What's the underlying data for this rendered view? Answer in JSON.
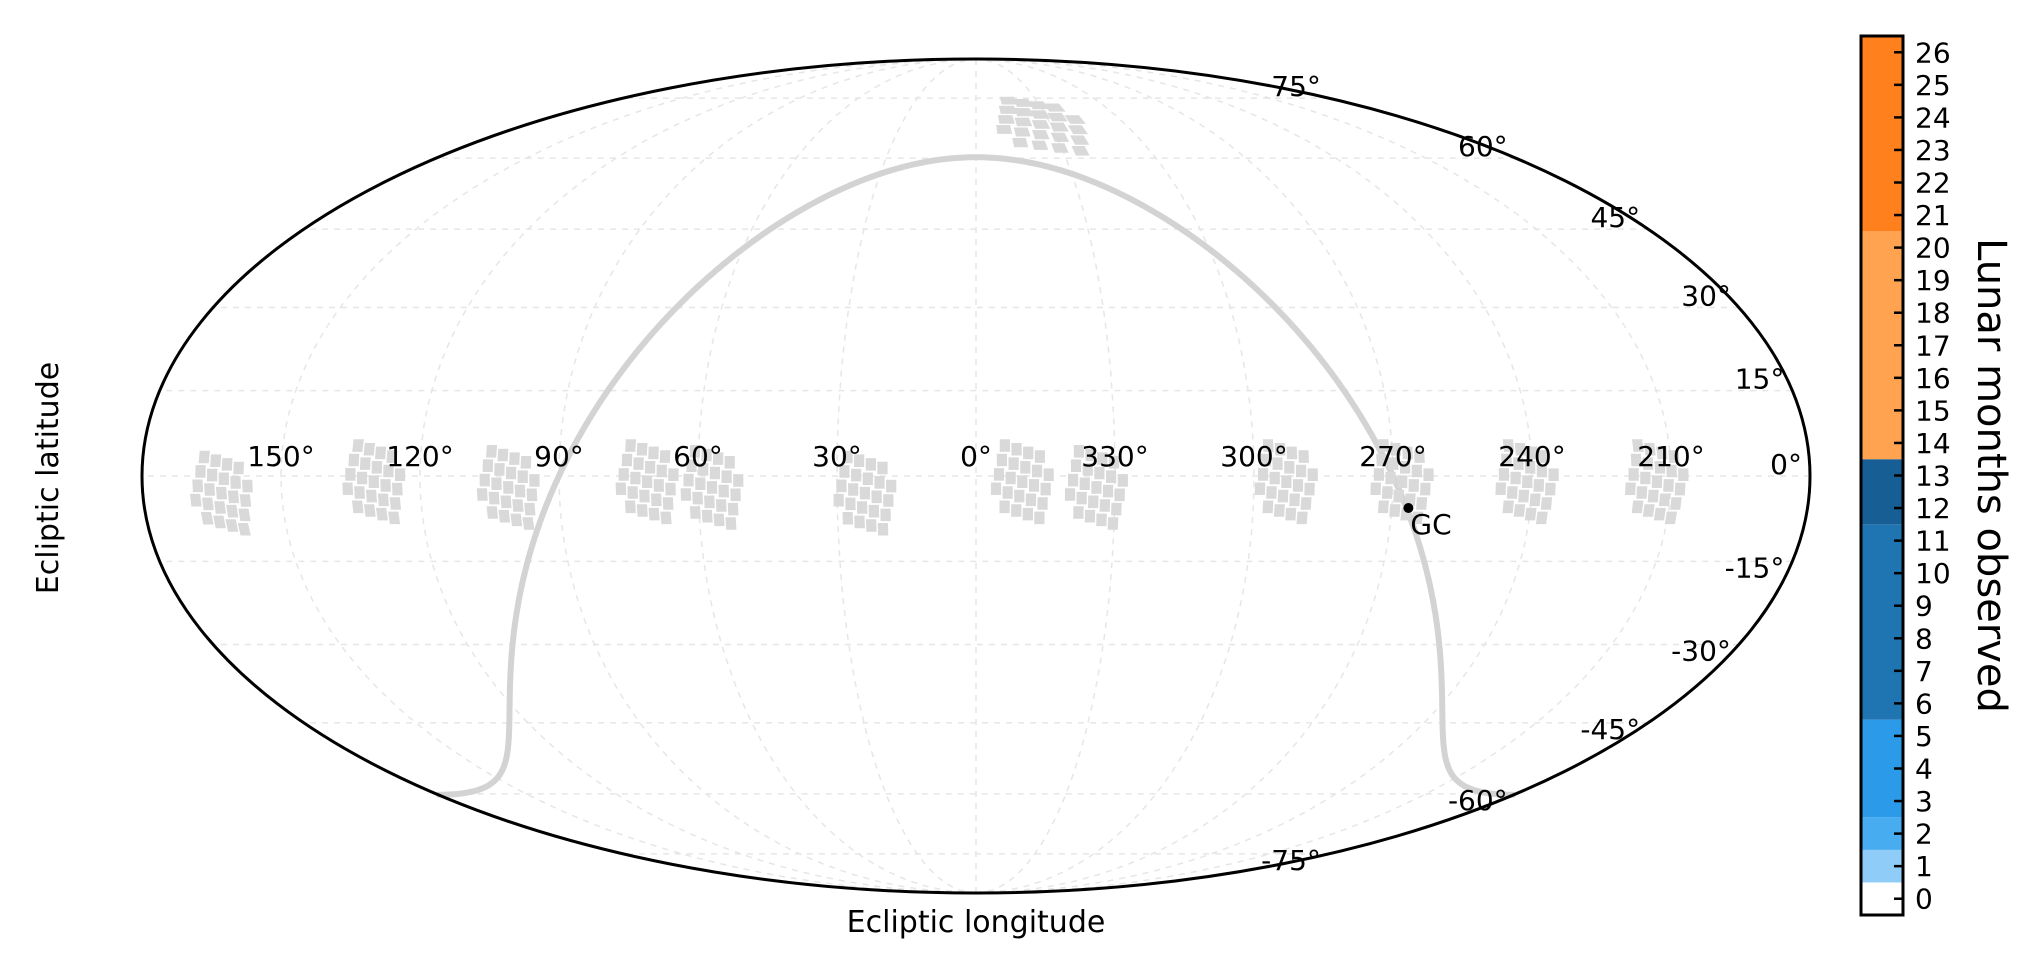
{
  "chart_data": {
    "type": "scatter",
    "projection": "mollweide",
    "title": "",
    "xlabel": "Ecliptic longitude",
    "ylabel": "Ecliptic latitude",
    "grid": true,
    "x_tick_labels": [
      "150°",
      "120°",
      "90°",
      "60°",
      "30°",
      "0°",
      "330°",
      "300°",
      "270°",
      "240°",
      "210°"
    ],
    "x_tick_values": [
      150,
      120,
      90,
      60,
      30,
      0,
      330,
      300,
      270,
      240,
      210
    ],
    "y_tick_labels": [
      "75°",
      "60°",
      "45°",
      "30°",
      "15°",
      "0°",
      "-15°",
      "-30°",
      "-45°",
      "-60°",
      "-75°"
    ],
    "y_tick_values": [
      75,
      60,
      45,
      30,
      15,
      0,
      -15,
      -30,
      -45,
      -60,
      -75
    ],
    "fields": [
      {
        "lon": 163,
        "lat": -3,
        "months": 0
      },
      {
        "lon": 130,
        "lat": -1,
        "months": 0
      },
      {
        "lon": 101,
        "lat": -2,
        "months": 0
      },
      {
        "lon": 71,
        "lat": -1,
        "months": 0
      },
      {
        "lon": 57,
        "lat": -2,
        "months": 0
      },
      {
        "lon": 24,
        "lat": -3,
        "months": 0
      },
      {
        "lon": 350,
        "lat": -1,
        "months": 0
      },
      {
        "lon": 334,
        "lat": -2,
        "months": 0
      },
      {
        "lon": 293,
        "lat": -1,
        "months": 0
      },
      {
        "lon": 268,
        "lat": -1,
        "months": 0
      },
      {
        "lon": 241,
        "lat": -1,
        "months": 0
      },
      {
        "lon": 213,
        "lat": -1,
        "months": 0
      },
      {
        "lon": 334,
        "lat": 68,
        "months": 0
      }
    ],
    "galactic_plane_color": "#d3d3d3",
    "field_color": "#d9d9d9",
    "annotation": {
      "label": "GC",
      "lon": 266.4,
      "lat": -5.6
    },
    "colorbar": {
      "label": "Lunar months observed",
      "min": 0,
      "max": 26,
      "tick_labels": [
        "0",
        "1",
        "2",
        "3",
        "4",
        "5",
        "6",
        "7",
        "8",
        "9",
        "10",
        "11",
        "12",
        "13",
        "14",
        "15",
        "16",
        "17",
        "18",
        "19",
        "20",
        "21",
        "22",
        "23",
        "24",
        "25",
        "26"
      ],
      "bins": [
        {
          "from": -0.5,
          "to": 0.5,
          "color": "#ffffff"
        },
        {
          "from": 0.5,
          "to": 1.5,
          "color": "#8fccf7"
        },
        {
          "from": 1.5,
          "to": 2.5,
          "color": "#47adf0"
        },
        {
          "from": 2.5,
          "to": 5.5,
          "color": "#2b9ae8"
        },
        {
          "from": 5.5,
          "to": 11.5,
          "color": "#1f74b2"
        },
        {
          "from": 11.5,
          "to": 13.5,
          "color": "#165e93"
        },
        {
          "from": 13.5,
          "to": 20.5,
          "color": "#ffa350"
        },
        {
          "from": 20.5,
          "to": 26.5,
          "color": "#ff801c"
        }
      ]
    }
  }
}
